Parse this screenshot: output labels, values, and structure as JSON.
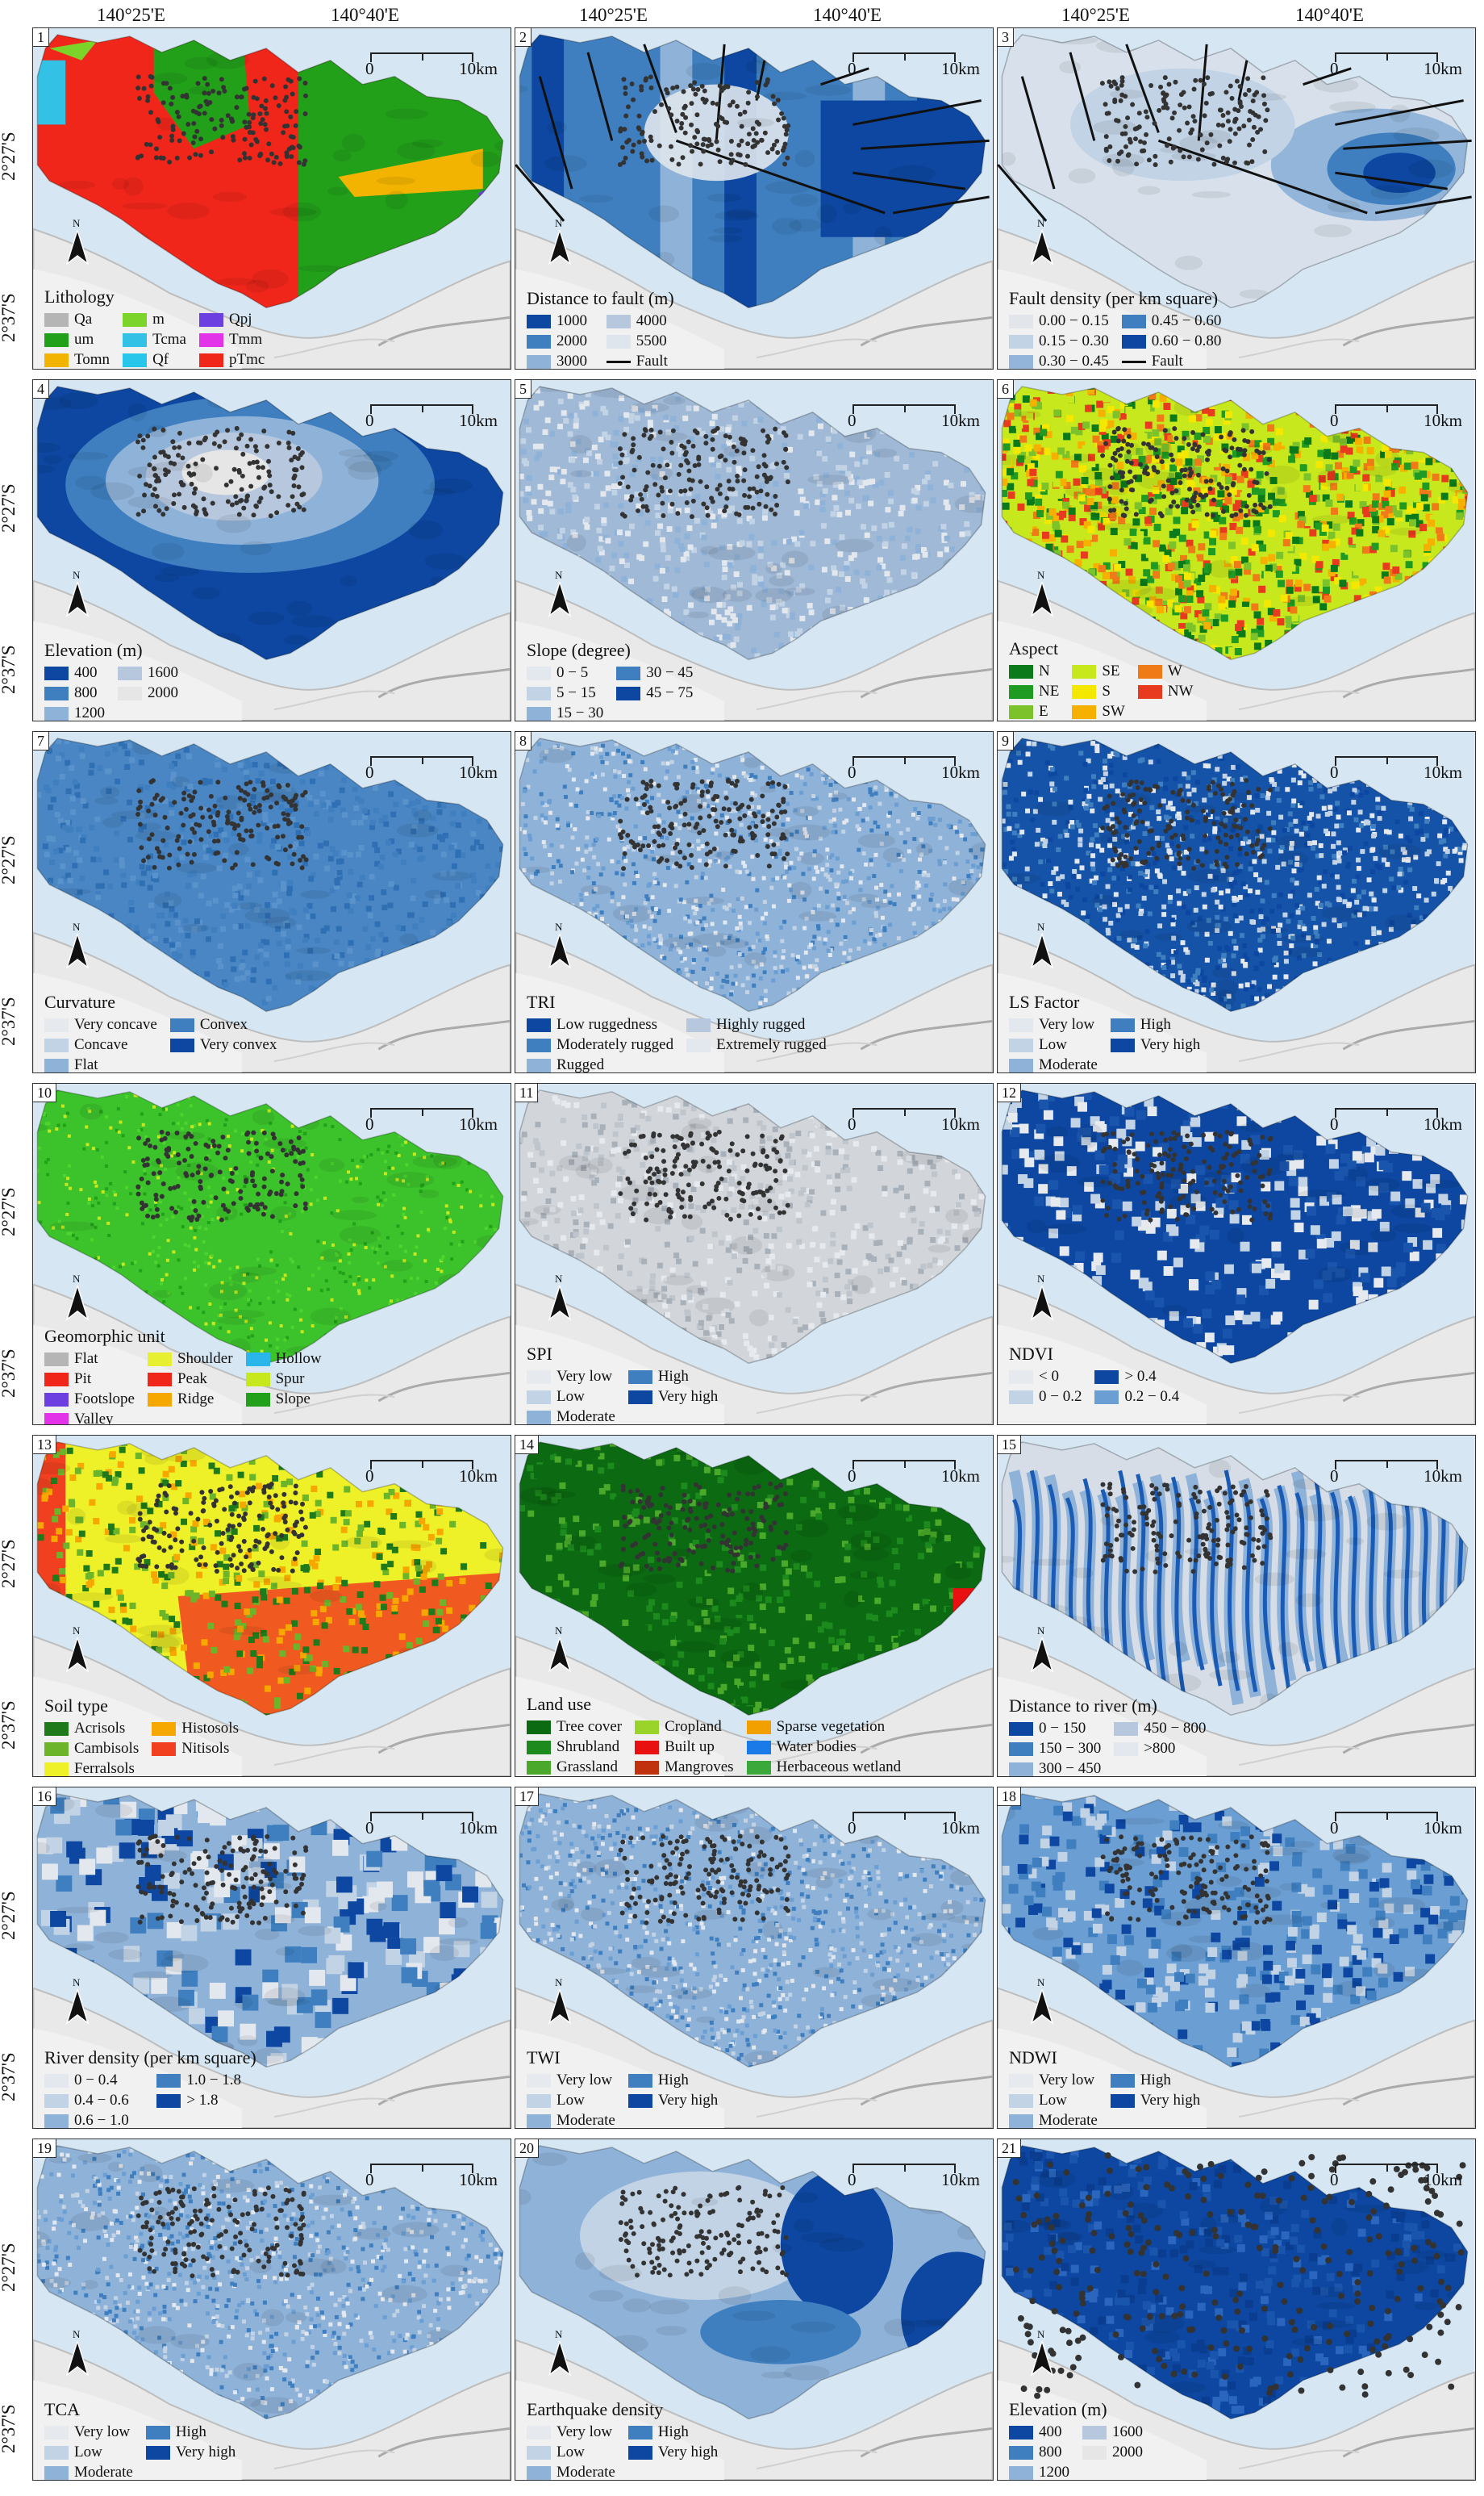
{
  "coords": {
    "top": [
      "140°25'E",
      "140°40'E"
    ],
    "left": [
      "2°27'S",
      "2°37'S"
    ]
  },
  "scale": {
    "zero": "0",
    "max": "10km"
  },
  "north_label": "N",
  "panels": [
    {
      "num": "1",
      "type": "lithology",
      "title": "Lithology",
      "cols": 3,
      "items": [
        {
          "label": "Qa",
          "color": "#b5b5b5"
        },
        {
          "label": "m",
          "color": "#7cd42a"
        },
        {
          "label": "Qpj",
          "color": "#6b3fe0"
        },
        {
          "label": "um",
          "color": "#22a01a"
        },
        {
          "label": "Tcma",
          "color": "#33c2e6"
        },
        {
          "label": "Tmm",
          "color": "#e233e8"
        },
        {
          "label": "Tomn",
          "color": "#f2b400"
        },
        {
          "label": "Qf",
          "color": "#27c6ea"
        },
        {
          "label": "pTmc",
          "color": "#f0261a"
        }
      ]
    },
    {
      "num": "2",
      "type": "blue_bands",
      "title": "Distance to fault (m)",
      "cols": 2,
      "items": [
        {
          "label": "1000",
          "color": "#0d47a1"
        },
        {
          "label": "4000",
          "color": "#b7c8de"
        },
        {
          "label": "2000",
          "color": "#3f7fc0"
        },
        {
          "label": "5500",
          "color": "#dfe5ec"
        },
        {
          "label": "3000",
          "color": "#8fb2d8"
        },
        {
          "label": "Fault",
          "line": true
        }
      ]
    },
    {
      "num": "3",
      "type": "density",
      "title": "Fault density (per km square)",
      "cols": 2,
      "items": [
        {
          "label": "0.00 − 0.15",
          "color": "#e2e6eb"
        },
        {
          "label": "0.45 − 0.60",
          "color": "#3f7fc0"
        },
        {
          "label": "0.15 − 0.30",
          "color": "#c2d3e6"
        },
        {
          "label": "0.60 − 0.80",
          "color": "#0d47a1"
        },
        {
          "label": "0.30 − 0.45",
          "color": "#93b5d9"
        },
        {
          "label": "Fault",
          "line": true
        }
      ]
    },
    {
      "num": "4",
      "type": "elevation",
      "title": "Elevation (m)",
      "cols": 2,
      "items": [
        {
          "label": "400",
          "color": "#0d47a1"
        },
        {
          "label": "1600",
          "color": "#b7c8de"
        },
        {
          "label": "800",
          "color": "#3f7fc0"
        },
        {
          "label": "2000",
          "color": "#e6e6e6"
        },
        {
          "label": "1200",
          "color": "#8fb2d8"
        }
      ]
    },
    {
      "num": "5",
      "type": "light_blue",
      "title": "Slope (degree)",
      "cols": 2,
      "items": [
        {
          "label": "0 − 5",
          "color": "#e3e8ee"
        },
        {
          "label": "30 − 45",
          "color": "#3f7fc0"
        },
        {
          "label": "5 − 15",
          "color": "#c2d3e6"
        },
        {
          "label": "45 − 75",
          "color": "#0d47a1"
        },
        {
          "label": "15 − 30",
          "color": "#8fb2d8"
        }
      ]
    },
    {
      "num": "6",
      "type": "aspect",
      "title": "Aspect",
      "cols": 3,
      "items": [
        {
          "label": "N",
          "color": "#0a7a1a"
        },
        {
          "label": "SE",
          "color": "#c8e81e"
        },
        {
          "label": "W",
          "color": "#f07a18"
        },
        {
          "label": "NE",
          "color": "#1f9a22"
        },
        {
          "label": "S",
          "color": "#f4e800"
        },
        {
          "label": "NW",
          "color": "#e83a1e"
        },
        {
          "label": "E",
          "color": "#7cc22a"
        },
        {
          "label": "SW",
          "color": "#f6b000"
        }
      ]
    },
    {
      "num": "7",
      "type": "uniform_blue",
      "title": "Curvature",
      "cols": 2,
      "items": [
        {
          "label": "Very concave",
          "color": "#e6e9ed"
        },
        {
          "label": "Convex",
          "color": "#3f7fc0"
        },
        {
          "label": "Concave",
          "color": "#c2d3e6"
        },
        {
          "label": "Very convex",
          "color": "#0d47a1"
        },
        {
          "label": "Flat",
          "color": "#8fb2d8"
        }
      ]
    },
    {
      "num": "8",
      "type": "speckle_blue",
      "title": "TRI",
      "cols": 2,
      "items": [
        {
          "label": "Low ruggedness",
          "color": "#0d47a1"
        },
        {
          "label": "Highly rugged",
          "color": "#b7c8de"
        },
        {
          "label": "Moderately rugged",
          "color": "#3f7fc0"
        },
        {
          "label": "Extremely rugged",
          "color": "#e3e8ee"
        },
        {
          "label": "Rugged",
          "color": "#8fb2d8"
        }
      ]
    },
    {
      "num": "9",
      "type": "dark_speckle",
      "title": "LS Factor",
      "cols": 2,
      "items": [
        {
          "label": "Very low",
          "color": "#e3e8ee"
        },
        {
          "label": "High",
          "color": "#3f7fc0"
        },
        {
          "label": "Low",
          "color": "#c2d3e6"
        },
        {
          "label": "Very high",
          "color": "#0d47a1"
        },
        {
          "label": "Moderate",
          "color": "#8fb2d8"
        }
      ]
    },
    {
      "num": "10",
      "type": "geomorph",
      "title": "Geomorphic unit",
      "cols": 3,
      "items": [
        {
          "label": "Flat",
          "color": "#b5b5b5"
        },
        {
          "label": "Shoulder",
          "color": "#e6f030"
        },
        {
          "label": "Hollow",
          "color": "#2ab6ea"
        },
        {
          "label": "Pit",
          "color": "#f0261a"
        },
        {
          "label": "Peak",
          "color": "#f0261a"
        },
        {
          "label": "Spur",
          "color": "#c8e81e"
        },
        {
          "label": "Footslope",
          "color": "#6b3fe0"
        },
        {
          "label": "Ridge",
          "color": "#f6a800"
        },
        {
          "label": "Slope",
          "color": "#22a01a"
        },
        {
          "label": "Valley",
          "color": "#e233e8"
        }
      ]
    },
    {
      "num": "11",
      "type": "grey",
      "title": "SPI",
      "cols": 2,
      "items": [
        {
          "label": "Very low",
          "color": "#e6e9ed"
        },
        {
          "label": "High",
          "color": "#3f7fc0"
        },
        {
          "label": "Low",
          "color": "#c2d3e6"
        },
        {
          "label": "Very high",
          "color": "#0d47a1"
        },
        {
          "label": "Moderate",
          "color": "#8fb2d8"
        }
      ]
    },
    {
      "num": "12",
      "type": "ndvi",
      "title": "NDVI",
      "cols": 2,
      "items": [
        {
          "label": "< 0",
          "color": "#e6e9ed"
        },
        {
          "label": "> 0.4",
          "color": "#0d47a1"
        },
        {
          "label": "0 − 0.2",
          "color": "#c2d3e6"
        },
        {
          "label": "0.2 − 0.4",
          "color": "#6b9ed2"
        }
      ]
    },
    {
      "num": "13",
      "type": "soil",
      "title": "Soil type",
      "cols": 2,
      "items": [
        {
          "label": "Acrisols",
          "color": "#1e7a1a"
        },
        {
          "label": "Histosols",
          "color": "#f6a800"
        },
        {
          "label": "Cambisols",
          "color": "#6cb52a"
        },
        {
          "label": "Nitisols",
          "color": "#f04020"
        },
        {
          "label": "Ferralsols",
          "color": "#eef028"
        }
      ]
    },
    {
      "num": "14",
      "type": "landuse",
      "title": "Land use",
      "cols": 3,
      "items": [
        {
          "label": "Tree cover",
          "color": "#0b6a12"
        },
        {
          "label": "Cropland",
          "color": "#9ad42a"
        },
        {
          "label": "Sparse vegetation",
          "color": "#f2a000"
        },
        {
          "label": "Shrubland",
          "color": "#1d8a1d"
        },
        {
          "label": "Built up",
          "color": "#e81010"
        },
        {
          "label": "Water bodies",
          "color": "#1a7ae8"
        },
        {
          "label": "Grassland",
          "color": "#4aa82a"
        },
        {
          "label": "Mangroves",
          "color": "#c0320e"
        },
        {
          "label": "Herbaceous wetland",
          "color": "#3aa83a"
        }
      ]
    },
    {
      "num": "15",
      "type": "river",
      "title": "Distance to river (m)",
      "cols": 2,
      "items": [
        {
          "label": "0 − 150",
          "color": "#0d47a1"
        },
        {
          "label": "450 − 800",
          "color": "#b7c8de"
        },
        {
          "label": "150 − 300",
          "color": "#3f7fc0"
        },
        {
          "label": ">800",
          "color": "#e3e8ee"
        },
        {
          "label": "300 − 450",
          "color": "#8fb2d8"
        }
      ]
    },
    {
      "num": "16",
      "type": "river_density",
      "title": "River density (per km square)",
      "cols": 2,
      "items": [
        {
          "label": "0 − 0.4",
          "color": "#e3e8ee"
        },
        {
          "label": "1.0 − 1.8",
          "color": "#3f7fc0"
        },
        {
          "label": "0.4 − 0.6",
          "color": "#c2d3e6"
        },
        {
          "label": "> 1.8",
          "color": "#0d47a1"
        },
        {
          "label": "0.6 − 1.0",
          "color": "#8fb2d8"
        }
      ]
    },
    {
      "num": "17",
      "type": "speckle_blue",
      "title": "TWI",
      "cols": 2,
      "items": [
        {
          "label": "Very low",
          "color": "#e6e9ed"
        },
        {
          "label": "High",
          "color": "#3f7fc0"
        },
        {
          "label": "Low",
          "color": "#c2d3e6"
        },
        {
          "label": "Very high",
          "color": "#0d47a1"
        },
        {
          "label": "Moderate",
          "color": "#8fb2d8"
        }
      ]
    },
    {
      "num": "18",
      "type": "ndwi",
      "title": "NDWI",
      "cols": 2,
      "items": [
        {
          "label": "Very low",
          "color": "#e6e9ed"
        },
        {
          "label": "High",
          "color": "#3f7fc0"
        },
        {
          "label": "Low",
          "color": "#c2d3e6"
        },
        {
          "label": "Very high",
          "color": "#0d47a1"
        },
        {
          "label": "Moderate",
          "color": "#8fb2d8"
        }
      ]
    },
    {
      "num": "19",
      "type": "speckle_blue",
      "title": "TCA",
      "cols": 2,
      "items": [
        {
          "label": "Very low",
          "color": "#e6e9ed"
        },
        {
          "label": "High",
          "color": "#3f7fc0"
        },
        {
          "label": "Low",
          "color": "#c2d3e6"
        },
        {
          "label": "Very high",
          "color": "#0d47a1"
        },
        {
          "label": "Moderate",
          "color": "#8fb2d8"
        }
      ]
    },
    {
      "num": "20",
      "type": "quake",
      "title": "Earthquake density",
      "cols": 2,
      "items": [
        {
          "label": "Very low",
          "color": "#e6e9ed"
        },
        {
          "label": "High",
          "color": "#3f7fc0"
        },
        {
          "label": "Low",
          "color": "#c2d3e6"
        },
        {
          "label": "Very high",
          "color": "#0d47a1"
        },
        {
          "label": "Moderate",
          "color": "#8fb2d8"
        }
      ]
    },
    {
      "num": "21",
      "type": "elev_dots",
      "title": "Elevation (m)",
      "cols": 2,
      "items": [
        {
          "label": "400",
          "color": "#0d47a1"
        },
        {
          "label": "1600",
          "color": "#b7c8de"
        },
        {
          "label": "800",
          "color": "#3f7fc0"
        },
        {
          "label": "2000",
          "color": "#e6e6e6"
        },
        {
          "label": "1200",
          "color": "#8fb2d8"
        }
      ]
    }
  ]
}
